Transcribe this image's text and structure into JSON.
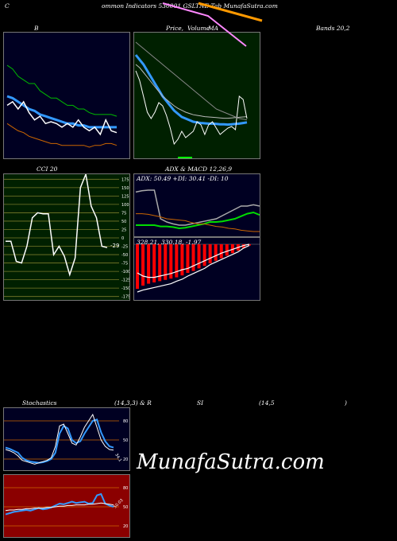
{
  "header": {
    "title": "ommon  Indicators 530001 GSLTNE Tab MunafaSutra.com",
    "prefix": "C",
    "bands_label": "Bands 20,2",
    "b_label": "B",
    "price_label": "Price,",
    "volume_label": "Volume",
    "ma_label": "MA"
  },
  "labels": {
    "cci": "CCI 20",
    "adx_macd": "ADX  & MACD 12,26,9",
    "adx_values": "ADX: 50.49  +DI: 30.41 -DI: 10",
    "macd_values": "328.21,  330.18,  -1.97",
    "stoch": "Stochastics",
    "stoch_params": "(14,3,3) & R",
    "si": "SI",
    "rsi_params": "(14,5",
    "rsi_close": ")",
    "cci_value": "-29",
    "stoch_value": "34.1",
    "rsi_value": "50.03"
  },
  "watermark": "MunafaSutra.com",
  "colors": {
    "bg": "#000000",
    "blue_panel": "#000022",
    "green_panel": "#002000",
    "cci_panel": "#002000",
    "adx_panel": "#000022",
    "stoch_panel": "#000022",
    "rsi_panel": "#8b0000",
    "white": "#ffffff",
    "blue": "#3399ff",
    "green": "#00cc00",
    "orange": "#cc6600",
    "red": "#ff0000"
  },
  "chart_data": [
    {
      "type": "line",
      "name": "bollinger",
      "x": [
        0,
        1,
        2,
        3,
        4,
        5,
        6,
        7,
        8,
        9,
        10,
        11,
        12,
        13,
        14,
        15,
        16,
        17,
        18,
        19,
        20
      ],
      "series": [
        {
          "values": [
            72,
            70,
            66,
            64,
            62,
            62,
            58,
            56,
            54,
            54,
            52,
            50,
            50,
            48,
            48,
            46,
            45,
            45,
            45,
            45,
            44
          ]
        },
        {
          "values": [
            55,
            54,
            52,
            50,
            48,
            47,
            45,
            44,
            43,
            42,
            41,
            40,
            40,
            39,
            39,
            38,
            38,
            38,
            38,
            38,
            38
          ]
        },
        {
          "values": [
            40,
            38,
            36,
            35,
            33,
            32,
            31,
            30,
            29,
            29,
            28,
            28,
            28,
            28,
            28,
            27,
            28,
            28,
            29,
            29,
            28
          ]
        },
        {
          "values": [
            50,
            52,
            48,
            52,
            46,
            42,
            44,
            40,
            41,
            40,
            38,
            40,
            38,
            42,
            38,
            36,
            38,
            34,
            42,
            36,
            35
          ]
        }
      ],
      "ylim": [
        20,
        90
      ]
    },
    {
      "type": "line",
      "name": "price_ma",
      "x": [
        0,
        1,
        2,
        3,
        4,
        5,
        6,
        7,
        8,
        9,
        10,
        11,
        12,
        13,
        14,
        15,
        16,
        17,
        18,
        19,
        20,
        21,
        22,
        23,
        24,
        25,
        26,
        27,
        28,
        29
      ],
      "series": [
        {
          "values": [
            480,
            465,
            450,
            430,
            410,
            390,
            370,
            350,
            335,
            320,
            305,
            295,
            285,
            280,
            275,
            270,
            268,
            266,
            265,
            264,
            264,
            263,
            262,
            262,
            261,
            262,
            263,
            264,
            266,
            268
          ]
        },
        {
          "values": [
            450,
            440,
            425,
            410,
            395,
            380,
            365,
            350,
            340,
            330,
            320,
            312,
            306,
            300,
            296,
            292,
            290,
            288,
            286,
            285,
            284,
            283,
            282,
            281,
            281,
            282,
            283,
            284,
            285,
            286
          ]
        },
        {
          "values": [
            430,
            400,
            350,
            300,
            280,
            300,
            330,
            320,
            290,
            250,
            200,
            215,
            240,
            220,
            230,
            240,
            270,
            260,
            230,
            260,
            270,
            250,
            230,
            240,
            250,
            255,
            245,
            350,
            340,
            280
          ]
        },
        {
          "values": [
            520,
            510,
            500,
            490,
            480,
            470,
            460,
            450,
            440,
            430,
            420,
            410,
            400,
            390,
            380,
            370,
            360,
            350,
            340,
            330,
            320,
            310,
            305,
            300,
            295,
            290,
            285,
            280,
            278,
            276
          ]
        }
      ],
      "ylim": [
        150,
        550
      ]
    },
    {
      "type": "line",
      "name": "cci",
      "x": [
        0,
        1,
        2,
        3,
        4,
        5,
        6,
        7,
        8,
        9,
        10,
        11,
        12,
        13,
        14,
        15,
        16,
        17,
        18,
        19
      ],
      "values": [
        -10,
        -10,
        -70,
        -75,
        -25,
        60,
        75,
        72,
        72,
        -50,
        -25,
        -55,
        -110,
        -60,
        150,
        190,
        95,
        60,
        -25,
        -29
      ],
      "ylim": [
        -190,
        190
      ]
    },
    {
      "type": "line",
      "name": "adx",
      "x": [
        0,
        1,
        2,
        3,
        4,
        5,
        6,
        7,
        8,
        9,
        10,
        11,
        12,
        13,
        14,
        15,
        16,
        17,
        18,
        19,
        20
      ],
      "series": [
        {
          "values": [
            72,
            74,
            75,
            75,
            30,
            25,
            22,
            20,
            20,
            22,
            24,
            26,
            28,
            30,
            35,
            40,
            45,
            50,
            50,
            52,
            50
          ]
        },
        {
          "values": [
            20,
            20,
            20,
            20,
            18,
            18,
            17,
            15,
            16,
            18,
            20,
            22,
            25,
            25,
            26,
            28,
            30,
            34,
            38,
            40,
            36
          ]
        },
        {
          "values": [
            38,
            38,
            37,
            35,
            33,
            30,
            29,
            28,
            27,
            24,
            22,
            22,
            20,
            18,
            17,
            15,
            14,
            12,
            11,
            10,
            10
          ]
        }
      ],
      "ylim": [
        0,
        100
      ]
    },
    {
      "type": "bar",
      "name": "macd",
      "x": [
        0,
        1,
        2,
        3,
        4,
        5,
        6,
        7,
        8,
        9,
        10,
        11,
        12,
        13,
        14,
        15,
        16,
        17,
        18,
        19,
        20
      ],
      "series": [
        {
          "values": [
            -70,
            -65,
            -62,
            -60,
            -58,
            -56,
            -54,
            -52,
            -49,
            -45,
            -42,
            -38,
            -34,
            -30,
            -26,
            -22,
            -18,
            -14,
            -10,
            -6,
            -2
          ]
        },
        {
          "values": [
            -45,
            -50,
            -52,
            -52,
            -50,
            -48,
            -46,
            -43,
            -40,
            -38,
            -34,
            -30,
            -26,
            -22,
            -18,
            -14,
            -11,
            -8,
            -5,
            -2,
            0
          ]
        },
        {
          "values": [
            -75,
            -72,
            -70,
            -68,
            -66,
            -64,
            -62,
            -58,
            -55,
            -50,
            -46,
            -42,
            -38,
            -32,
            -28,
            -24,
            -20,
            -16,
            -12,
            -6,
            -2
          ]
        }
      ],
      "ylim": [
        -90,
        10
      ]
    },
    {
      "type": "line",
      "name": "stochastics",
      "x": [
        0,
        1,
        2,
        3,
        4,
        5,
        6,
        7,
        8,
        9,
        10,
        11,
        12,
        13,
        14,
        15,
        16,
        17,
        18,
        19,
        20,
        21,
        22,
        23,
        24,
        25,
        26
      ],
      "series": [
        {
          "values": [
            35,
            33,
            30,
            25,
            18,
            16,
            14,
            12,
            14,
            16,
            18,
            22,
            40,
            72,
            75,
            60,
            45,
            42,
            55,
            70,
            80,
            90,
            70,
            50,
            40,
            35,
            34
          ]
        },
        {
          "values": [
            38,
            36,
            33,
            30,
            22,
            18,
            16,
            15,
            14,
            15,
            17,
            20,
            30,
            60,
            72,
            68,
            50,
            45,
            48,
            60,
            70,
            80,
            82,
            62,
            48,
            40,
            38
          ]
        }
      ],
      "ylim": [
        0,
        100
      ]
    },
    {
      "type": "line",
      "name": "rsi",
      "x": [
        0,
        1,
        2,
        3,
        4,
        5,
        6,
        7,
        8,
        9,
        10,
        11,
        12,
        13,
        14,
        15,
        16,
        17,
        18,
        19,
        20,
        21,
        22,
        23,
        24,
        25,
        26
      ],
      "series": [
        {
          "values": [
            38,
            40,
            42,
            43,
            44,
            45,
            44,
            46,
            48,
            46,
            47,
            49,
            52,
            55,
            54,
            56,
            58,
            56,
            57,
            58,
            55,
            56,
            68,
            70,
            55,
            52,
            50
          ]
        },
        {
          "values": [
            44,
            45,
            45,
            46,
            46,
            47,
            47,
            48,
            48,
            48,
            49,
            49,
            50,
            51,
            51,
            52,
            52,
            53,
            53,
            53,
            54,
            54,
            55,
            56,
            55,
            54,
            53
          ]
        }
      ],
      "ylim": [
        0,
        100
      ]
    }
  ]
}
